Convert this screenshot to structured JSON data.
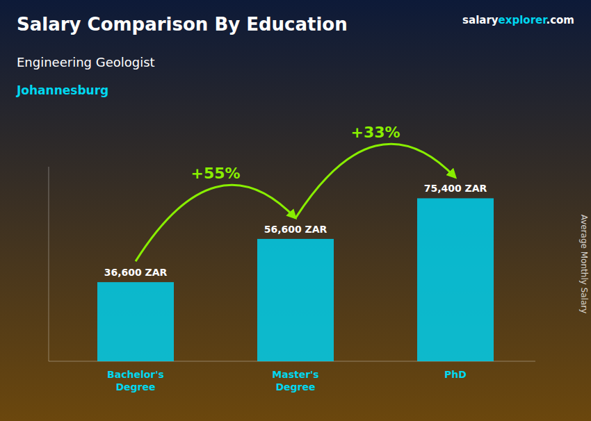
{
  "chart_data": {
    "type": "bar",
    "title": "Salary Comparison By Education",
    "subtitle": "Engineering Geologist",
    "annotations": [
      "Johannesburg",
      "+55%",
      "+33%",
      "salary",
      "explorer",
      ".com"
    ],
    "ylabel": "Average Monthly Salary",
    "categories": [
      "Bachelor's\nDegree",
      "Master's\nDegree",
      "PhD"
    ],
    "values": [
      36600,
      56600,
      75400
    ],
    "value_labels": [
      "36,600 ZAR",
      "56,600 ZAR",
      "75,400 ZAR"
    ],
    "data_labels": true,
    "color": "#00cfec",
    "ylim": [
      0,
      90000
    ],
    "tick_labels": false,
    "grid": false
  }
}
